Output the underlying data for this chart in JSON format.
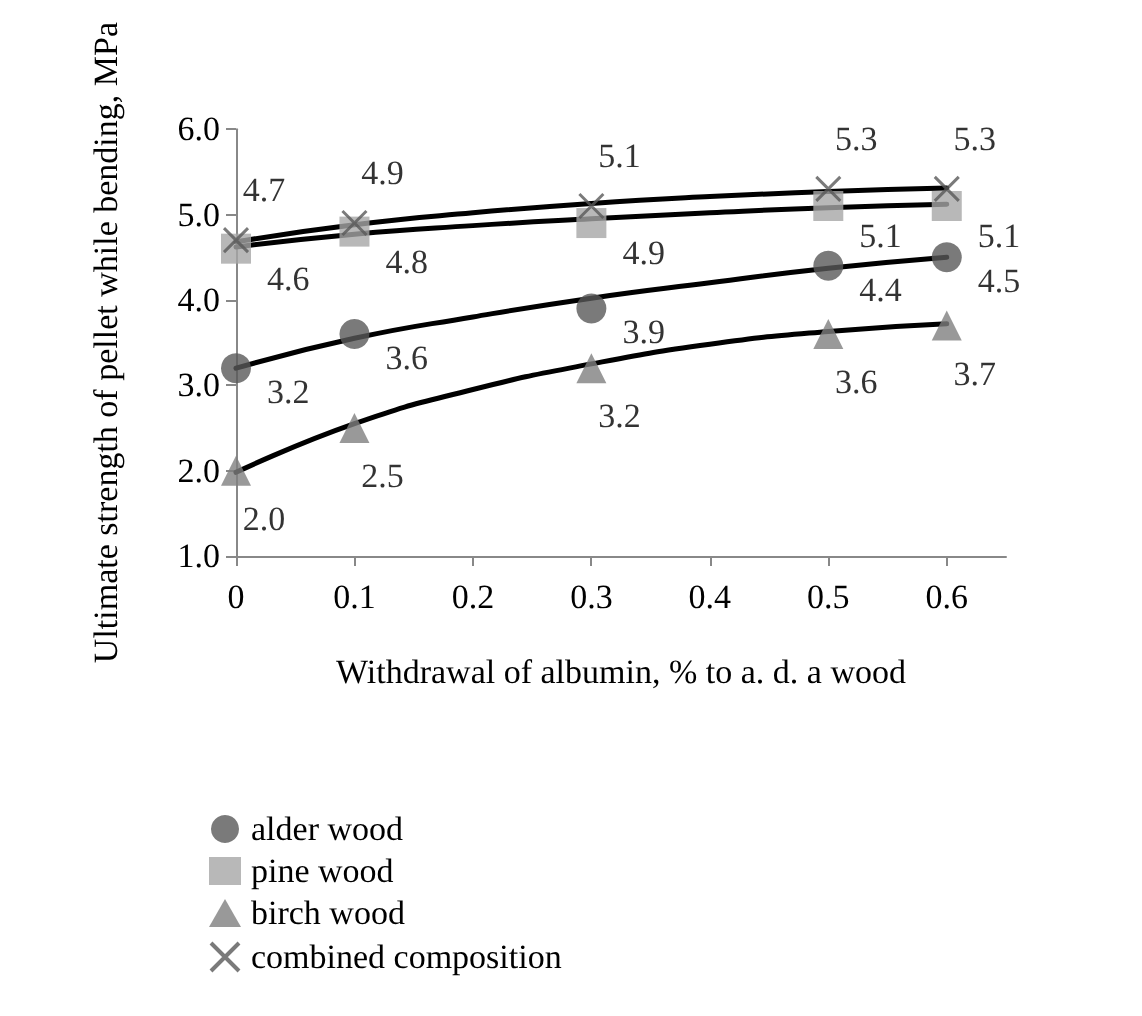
{
  "chart_data": {
    "type": "scatter",
    "xlabel": "Withdrawal of albumin, % to a. d. a wood",
    "ylabel": "Ultimate strength of pellet while bending, MPa",
    "x": [
      0,
      0.1,
      0.3,
      0.5,
      0.6
    ],
    "series": [
      {
        "name": "alder wood",
        "color": "#595959",
        "marker": "circle",
        "values": [
          3.2,
          3.6,
          3.9,
          4.4,
          4.5
        ],
        "value_labels": [
          "3.2",
          "3.6",
          "3.9",
          "4.4",
          "4.5"
        ]
      },
      {
        "name": "pine wood",
        "color": "#a6a6a6",
        "marker": "square",
        "values": [
          4.6,
          4.8,
          4.9,
          5.1,
          5.1
        ],
        "value_labels": [
          "4.6",
          "4.8",
          "4.9",
          "5.1",
          "5.1"
        ]
      },
      {
        "name": "birch wood",
        "color": "#7f7f7f",
        "marker": "triangle",
        "values": [
          2.0,
          2.5,
          3.2,
          3.6,
          3.7
        ],
        "value_labels": [
          "2.0",
          "2.5",
          "3.2",
          "3.6",
          "3.7"
        ]
      },
      {
        "name": "combined composition",
        "color": "#595959",
        "marker": "cross",
        "values": [
          4.7,
          4.9,
          5.1,
          5.3,
          5.3
        ],
        "value_labels": [
          "4.7",
          "4.9",
          "5.1",
          "5.3",
          "5.3"
        ]
      },
      {
        "type": "line",
        "color": "#000000",
        "marker": "none",
        "x": [
          0,
          0.1,
          0.2,
          0.3,
          0.4,
          0.5,
          0.6
        ],
        "values": [
          3.2,
          3.55,
          3.8,
          4.02,
          4.2,
          4.37,
          4.5
        ]
      },
      {
        "type": "line",
        "color": "#000000",
        "marker": "none",
        "x": [
          0,
          0.1,
          0.2,
          0.3,
          0.4,
          0.5,
          0.6
        ],
        "values": [
          4.62,
          4.77,
          4.87,
          4.95,
          5.02,
          5.08,
          5.12
        ]
      },
      {
        "type": "line",
        "color": "#000000",
        "marker": "none",
        "x": [
          0,
          0.1,
          0.2,
          0.3,
          0.4,
          0.5,
          0.6
        ],
        "values": [
          1.98,
          2.55,
          2.95,
          3.25,
          3.48,
          3.63,
          3.72
        ]
      },
      {
        "type": "line",
        "color": "#000000",
        "marker": "none",
        "x": [
          0,
          0.1,
          0.2,
          0.3,
          0.4,
          0.5,
          0.6
        ],
        "values": [
          4.68,
          4.88,
          5.02,
          5.13,
          5.21,
          5.27,
          5.31
        ]
      }
    ],
    "xlim": [
      0,
      0.65
    ],
    "xticks": [
      0,
      0.1,
      0.2,
      0.3,
      0.4,
      0.5,
      0.6
    ],
    "ylim": [
      1,
      6
    ],
    "yticks": [
      {
        "value": 1,
        "label": "1.0"
      },
      {
        "value": 2,
        "label": "2.0"
      },
      {
        "value": 3,
        "label": "3.0"
      },
      {
        "value": 4,
        "label": "4.0"
      },
      {
        "value": 5,
        "label": "5.0"
      },
      {
        "value": 6,
        "label": "6.0"
      }
    ],
    "grid": false,
    "legend": "bottom",
    "line_style": "solid"
  }
}
